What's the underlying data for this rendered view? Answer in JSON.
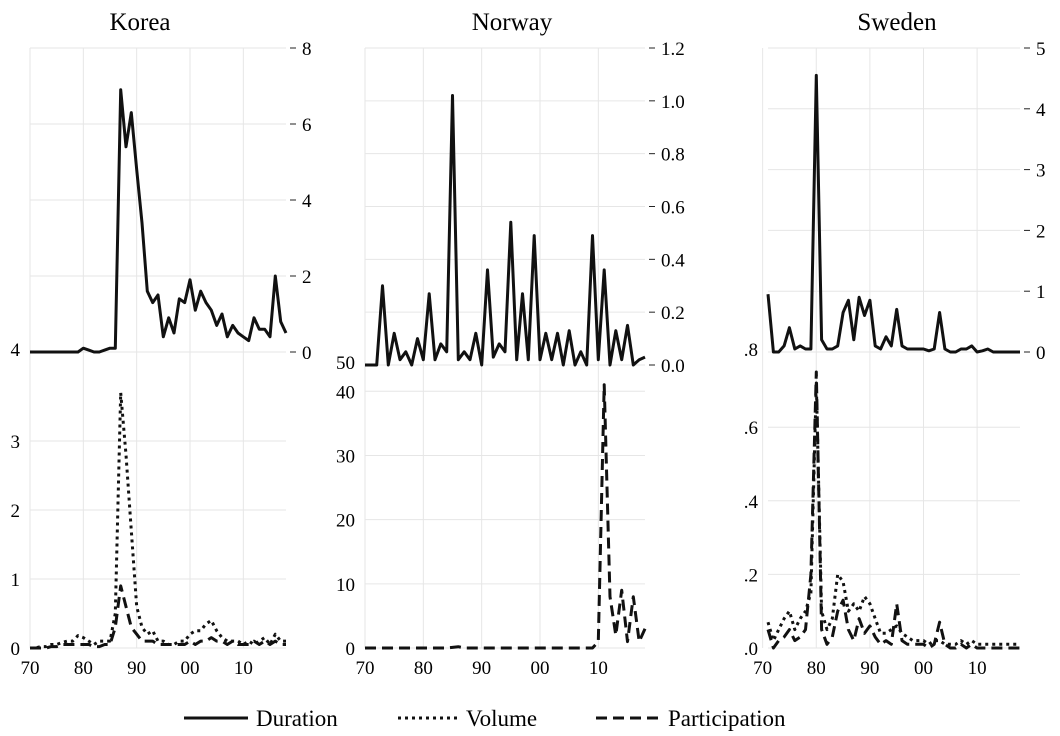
{
  "legend": {
    "items": [
      {
        "label": "Duration",
        "style": "solid"
      },
      {
        "label": "Volume",
        "style": "dotted"
      },
      {
        "label": "Participation",
        "style": "dashed"
      }
    ]
  },
  "chart_data": [
    {
      "type": "line",
      "title": "Korea",
      "x": [
        1970,
        1971,
        1972,
        1973,
        1974,
        1975,
        1976,
        1977,
        1978,
        1979,
        1980,
        1981,
        1982,
        1983,
        1984,
        1985,
        1986,
        1987,
        1988,
        1989,
        1990,
        1991,
        1992,
        1993,
        1994,
        1995,
        1996,
        1997,
        1998,
        1999,
        2000,
        2001,
        2002,
        2003,
        2004,
        2005,
        2006,
        2007,
        2008,
        2009,
        2010,
        2011,
        2012,
        2013,
        2014,
        2015,
        2016,
        2017,
        2018
      ],
      "xticks": [
        "70",
        "80",
        "90",
        "00",
        "10"
      ],
      "top": {
        "ylim": [
          0,
          8
        ],
        "right_ticks": [
          "0",
          "2",
          "4",
          "6",
          "8"
        ],
        "left_label": "4",
        "series": [
          {
            "name": "Duration",
            "style": "solid",
            "values": [
              0,
              0,
              0,
              0,
              0,
              0,
              0,
              0,
              0,
              0,
              0.1,
              0.05,
              0,
              0,
              0.05,
              0.1,
              0.1,
              6.9,
              5.4,
              6.3,
              4.8,
              3.4,
              1.6,
              1.3,
              1.5,
              0.4,
              0.9,
              0.5,
              1.4,
              1.3,
              1.9,
              1.1,
              1.6,
              1.3,
              1.1,
              0.7,
              1.0,
              0.4,
              0.7,
              0.5,
              0.4,
              0.3,
              0.9,
              0.6,
              0.6,
              0.4,
              2.0,
              0.8,
              0.5
            ]
          }
        ]
      },
      "bottom": {
        "ylim": [
          0,
          4
        ],
        "left_ticks": [
          "0",
          "1",
          "2",
          "3"
        ],
        "series": [
          {
            "name": "Volume",
            "style": "dotted",
            "values": [
              0,
              0,
              0.02,
              0.02,
              0.05,
              0.05,
              0.08,
              0.1,
              0.1,
              0.18,
              0.15,
              0.1,
              0.05,
              0.1,
              0.1,
              0.1,
              0.5,
              3.7,
              2.8,
              1.7,
              0.6,
              0.3,
              0.2,
              0.25,
              0.1,
              0.1,
              0.05,
              0.05,
              0.1,
              0.1,
              0.2,
              0.25,
              0.25,
              0.35,
              0.4,
              0.25,
              0.15,
              0.1,
              0.1,
              0.1,
              0.05,
              0.1,
              0.05,
              0.1,
              0.15,
              0.05,
              0.2,
              0.1,
              0.1
            ]
          },
          {
            "name": "Participation",
            "style": "dashed",
            "values": [
              0,
              0,
              0,
              0,
              0.02,
              0.02,
              0.05,
              0.05,
              0.05,
              0.05,
              0.05,
              0.05,
              0.02,
              0.02,
              0.05,
              0.05,
              0.3,
              0.9,
              0.6,
              0.3,
              0.2,
              0.1,
              0.1,
              0.1,
              0.05,
              0.05,
              0.05,
              0.05,
              0.05,
              0.05,
              0.1,
              0.05,
              0.1,
              0.1,
              0.15,
              0.1,
              0.1,
              0.05,
              0.1,
              0.05,
              0.05,
              0.05,
              0.1,
              0.05,
              0.1,
              0.05,
              0.1,
              0.05,
              0.05
            ]
          }
        ]
      }
    },
    {
      "type": "line",
      "title": "Norway",
      "x": [
        1970,
        1971,
        1972,
        1973,
        1974,
        1975,
        1976,
        1977,
        1978,
        1979,
        1980,
        1981,
        1982,
        1983,
        1984,
        1985,
        1986,
        1987,
        1988,
        1989,
        1990,
        1991,
        1992,
        1993,
        1994,
        1995,
        1996,
        1997,
        1998,
        1999,
        2000,
        2001,
        2002,
        2003,
        2004,
        2005,
        2006,
        2007,
        2008,
        2009,
        2010,
        2011,
        2012,
        2013,
        2014,
        2015,
        2016,
        2017,
        2018
      ],
      "xticks": [
        "70",
        "80",
        "90",
        "00",
        "10"
      ],
      "top": {
        "ylim": [
          0,
          1.2
        ],
        "right_ticks": [
          "0.0",
          "0.2",
          "0.4",
          "0.6",
          "0.8",
          "1.0",
          "1.2"
        ],
        "left_label": "50",
        "series": [
          {
            "name": "Duration",
            "style": "solid",
            "values": [
              0,
              0,
              0,
              0.3,
              0,
              0.12,
              0.02,
              0.05,
              0,
              0.1,
              0.02,
              0.27,
              0.02,
              0.08,
              0.05,
              1.02,
              0.02,
              0.05,
              0.02,
              0.12,
              0,
              0.36,
              0.03,
              0.08,
              0.05,
              0.54,
              0.02,
              0.27,
              0.02,
              0.49,
              0.02,
              0.12,
              0.02,
              0.12,
              0,
              0.13,
              0,
              0.05,
              0,
              0.49,
              0.02,
              0.36,
              0,
              0.13,
              0.02,
              0.15,
              0,
              0.02,
              0.03
            ]
          }
        ]
      },
      "bottom": {
        "ylim": [
          0,
          43
        ],
        "left_ticks": [
          "0",
          "10",
          "20",
          "30",
          "40"
        ],
        "series": [
          {
            "name": "Participation",
            "style": "dashed",
            "values": [
              0,
              0,
              0,
              0,
              0,
              0,
              0,
              0,
              0,
              0,
              0,
              0,
              0,
              0,
              0,
              0.1,
              0.2,
              0,
              0,
              0,
              0,
              0,
              0,
              0,
              0,
              0,
              0,
              0,
              0,
              0,
              0,
              0,
              0,
              0,
              0,
              0,
              0,
              0,
              0,
              0,
              1,
              41,
              8,
              2,
              9,
              1,
              8,
              1,
              3
            ]
          }
        ]
      }
    },
    {
      "type": "line",
      "title": "Sweden",
      "x": [
        1971,
        1972,
        1973,
        1974,
        1975,
        1976,
        1977,
        1978,
        1979,
        1980,
        1981,
        1982,
        1983,
        1984,
        1985,
        1986,
        1987,
        1988,
        1989,
        1990,
        1991,
        1992,
        1993,
        1994,
        1995,
        1996,
        1997,
        1998,
        1999,
        2000,
        2001,
        2002,
        2003,
        2004,
        2005,
        2006,
        2007,
        2008,
        2009,
        2010,
        2011,
        2012,
        2013,
        2014,
        2015,
        2016,
        2017,
        2018
      ],
      "xticks": [
        "70",
        "80",
        "90",
        "00",
        "10"
      ],
      "top": {
        "ylim": [
          0,
          5
        ],
        "right_ticks": [
          "0",
          "1",
          "2",
          "3",
          "4",
          "5"
        ],
        "left_label": ".8",
        "series": [
          {
            "name": "Duration",
            "style": "solid",
            "values": [
              0.95,
              0,
              0,
              0.1,
              0.4,
              0.05,
              0.1,
              0.05,
              0.05,
              4.55,
              0.2,
              0.05,
              0.05,
              0.1,
              0.65,
              0.85,
              0.2,
              0.9,
              0.6,
              0.85,
              0.1,
              0.05,
              0.25,
              0.1,
              0.7,
              0.1,
              0.05,
              0.05,
              0.05,
              0.05,
              0.02,
              0.05,
              0.65,
              0.05,
              0,
              0,
              0.05,
              0.05,
              0.1,
              0,
              0.02,
              0.05,
              0,
              0,
              0,
              0,
              0,
              0
            ]
          }
        ]
      },
      "bottom": {
        "ylim": [
          0,
          0.75
        ],
        "left_ticks": [
          ".0",
          ".2",
          ".4",
          ".6"
        ],
        "series": [
          {
            "name": "Volume",
            "style": "dotted",
            "values": [
              0.07,
              0.02,
              0.05,
              0.08,
              0.1,
              0.05,
              0.08,
              0.1,
              0.15,
              0.72,
              0.1,
              0.05,
              0.08,
              0.2,
              0.18,
              0.1,
              0.12,
              0.1,
              0.14,
              0.12,
              0.08,
              0.04,
              0.04,
              0.05,
              0.06,
              0.04,
              0.03,
              0.02,
              0.02,
              0.02,
              0.01,
              0.02,
              0.02,
              0.01,
              0.01,
              0.01,
              0.02,
              0.01,
              0.02,
              0.01,
              0.01,
              0.01,
              0.01,
              0.01,
              0.01,
              0.01,
              0.01,
              0.01
            ]
          },
          {
            "name": "Participation",
            "style": "dashed",
            "values": [
              0.05,
              0,
              0.02,
              0.03,
              0.05,
              0.02,
              0.03,
              0.05,
              0.2,
              0.75,
              0.05,
              0.01,
              0.03,
              0.1,
              0.13,
              0.05,
              0.02,
              0.08,
              0.04,
              0.06,
              0.03,
              0.01,
              0.02,
              0.01,
              0.12,
              0.02,
              0.01,
              0.01,
              0.01,
              0.01,
              0,
              0.01,
              0.07,
              0.01,
              0,
              0,
              0.01,
              0,
              0.01,
              0,
              0,
              0,
              0,
              0,
              0,
              0,
              0,
              0
            ]
          }
        ]
      }
    }
  ]
}
